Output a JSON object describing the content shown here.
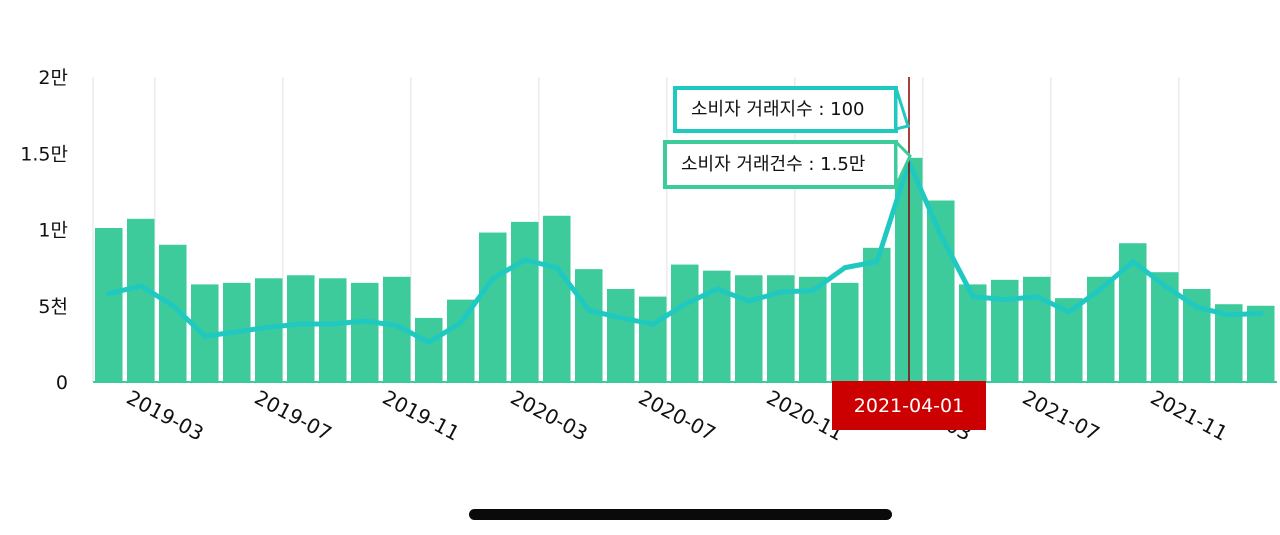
{
  "colors": {
    "bar": "#3dcb9c",
    "line": "#1fc9c0",
    "crosshair": "#8b0000",
    "badge": "#cc0000",
    "grid": "#ececec"
  },
  "tooltips": {
    "index_text": "소비자 거래지수 : 100",
    "count_text": "소비자 거래건수 : 1.5만"
  },
  "selected_date": "2021-04-01",
  "chart_data": {
    "type": "bar",
    "title": "",
    "xlabel": "",
    "ylabel": "",
    "ylim": [
      0,
      20000
    ],
    "y_ticks": [
      {
        "value": 0,
        "label": "0"
      },
      {
        "value": 5000,
        "label": "5천"
      },
      {
        "value": 10000,
        "label": "1만"
      },
      {
        "value": 15000,
        "label": "1.5만"
      },
      {
        "value": 20000,
        "label": "2만"
      }
    ],
    "x_tick_labels": [
      {
        "index": 1,
        "label": "2019-03"
      },
      {
        "index": 5,
        "label": "2019-07"
      },
      {
        "index": 9,
        "label": "2019-11"
      },
      {
        "index": 13,
        "label": "2020-03"
      },
      {
        "index": 17,
        "label": "2020-07"
      },
      {
        "index": 21,
        "label": "2020-11"
      },
      {
        "index": 25,
        "label": "2021-03"
      },
      {
        "index": 29,
        "label": "2021-07"
      },
      {
        "index": 33,
        "label": "2021-11"
      }
    ],
    "categories": [
      "2019-02",
      "2019-03",
      "2019-04",
      "2019-05",
      "2019-06",
      "2019-07",
      "2019-08",
      "2019-09",
      "2019-10",
      "2019-11",
      "2019-12",
      "2020-01",
      "2020-02",
      "2020-03",
      "2020-04",
      "2020-05",
      "2020-06",
      "2020-07",
      "2020-08",
      "2020-09",
      "2020-10",
      "2020-11",
      "2020-12",
      "2021-01",
      "2021-02",
      "2021-03",
      "2021-04",
      "2021-05",
      "2021-06",
      "2021-07",
      "2021-08",
      "2021-09",
      "2021-10",
      "2021-11",
      "2021-12",
      "2022-01",
      "2022-02"
    ],
    "series": [
      {
        "values": [
          10100,
          10700,
          9000,
          6400,
          6500,
          6800,
          7000,
          6800,
          6500,
          6900,
          4200,
          5400,
          9800,
          10500,
          10900,
          7400,
          6100,
          5600,
          7700,
          7300,
          7000,
          7000,
          6900,
          6500,
          8800,
          14700,
          11900,
          6400,
          6700,
          6900,
          5500,
          6900,
          9100,
          7200,
          6100,
          5100,
          5000
        ]
      },
      {
        "values": [
          5800,
          6300,
          5000,
          3000,
          3300,
          3600,
          3800,
          3800,
          4000,
          3700,
          2600,
          3900,
          6800,
          8000,
          7500,
          4700,
          4200,
          3800,
          5100,
          6100,
          5300,
          5900,
          6000,
          7500,
          7900,
          14400,
          9600,
          5600,
          5400,
          5600,
          4600,
          6100,
          7900,
          6300,
          4900,
          4400,
          4500
        ]
      }
    ]
  }
}
